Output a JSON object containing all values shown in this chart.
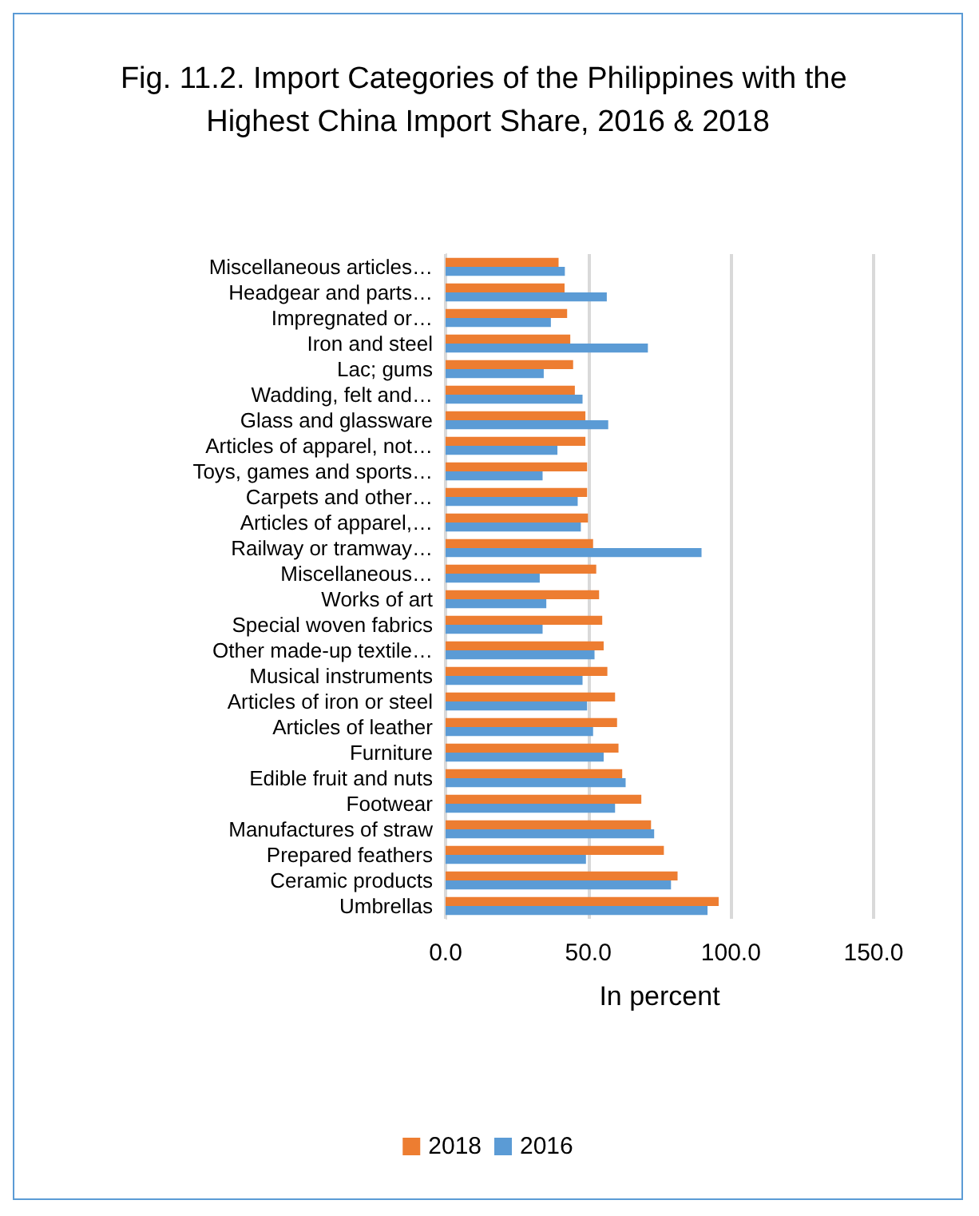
{
  "chart_data": {
    "type": "bar",
    "orientation": "horizontal",
    "title": "Fig. 11.2. Import Categories of the Philippines with the Highest China Import Share, 2016 & 2018",
    "xlabel": "In percent",
    "categories": [
      "Miscellaneous articles…",
      "Headgear and parts…",
      "Impregnated or…",
      "Iron and steel",
      "Lac; gums",
      "Wadding, felt and…",
      "Glass and glassware",
      "Articles of apparel, not…",
      "Toys, games and sports…",
      "Carpets and other…",
      "Articles of apparel,…",
      "Railway or tramway…",
      "Miscellaneous…",
      "Works of art",
      "Special woven fabrics",
      "Other made-up textile…",
      "Musical instruments",
      "Articles of iron or steel",
      "Articles of leather",
      "Furniture",
      "Edible fruit and nuts",
      "Footwear",
      "Manufactures of straw",
      "Prepared feathers",
      "Ceramic products",
      "Umbrellas"
    ],
    "series": [
      {
        "name": "2018",
        "color": "#ed7d31",
        "values": [
          39.6,
          41.7,
          42.6,
          43.7,
          44.7,
          45.3,
          49.0,
          49.0,
          49.6,
          49.6,
          49.9,
          51.7,
          52.8,
          53.8,
          54.9,
          55.4,
          56.7,
          59.4,
          60.1,
          60.6,
          61.9,
          68.6,
          72.0,
          76.5,
          81.3,
          95.7
        ]
      },
      {
        "name": "2016",
        "color": "#5b9bd5",
        "values": [
          41.8,
          56.5,
          36.9,
          70.9,
          34.4,
          48.0,
          57.0,
          39.2,
          34.0,
          46.3,
          47.4,
          89.7,
          33.0,
          35.3,
          34.0,
          52.2,
          48.0,
          49.6,
          51.7,
          55.4,
          63.1,
          59.4,
          73.1,
          49.2,
          79.0,
          91.8
        ]
      }
    ],
    "xlim": [
      0,
      150
    ],
    "xticks": [
      {
        "value": 0,
        "label": "0.0"
      },
      {
        "value": 50,
        "label": "50.0"
      },
      {
        "value": 100,
        "label": "100.0"
      },
      {
        "value": 150,
        "label": "150.0"
      }
    ],
    "grid": "x",
    "legend": "bottom"
  }
}
